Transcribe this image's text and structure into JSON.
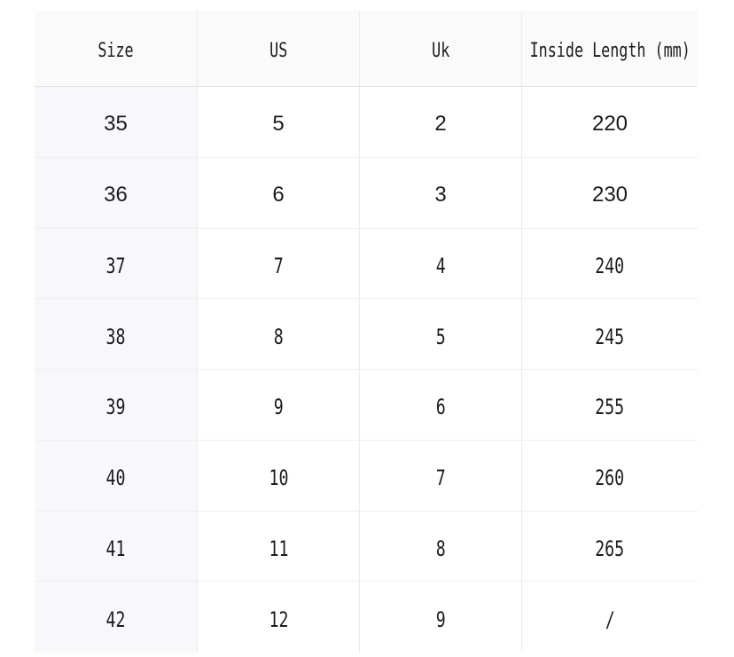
{
  "chart_data": {
    "type": "table",
    "columns": [
      "Size",
      "US",
      "Uk",
      "Inside Length (mm)"
    ],
    "rows": [
      [
        "35",
        "5",
        "2",
        "220"
      ],
      [
        "36",
        "6",
        "3",
        "230"
      ],
      [
        "37",
        "7",
        "4",
        "240"
      ],
      [
        "38",
        "8",
        "5",
        "245"
      ],
      [
        "39",
        "9",
        "6",
        "255"
      ],
      [
        "40",
        "10",
        "7",
        "260"
      ],
      [
        "41",
        "11",
        "8",
        "265"
      ],
      [
        "42",
        "12",
        "9",
        "/"
      ]
    ],
    "layout_hints": {
      "header_row": true,
      "first_column_shaded": true,
      "grid_lines": "light"
    }
  },
  "colors": {
    "page_background": "#ffffff",
    "header_background": "#fafafb",
    "first_column_background": "#f8f8fa",
    "cell_background": "#ffffff",
    "grid_line": "#ebebee",
    "text": "#1b1b1d"
  }
}
